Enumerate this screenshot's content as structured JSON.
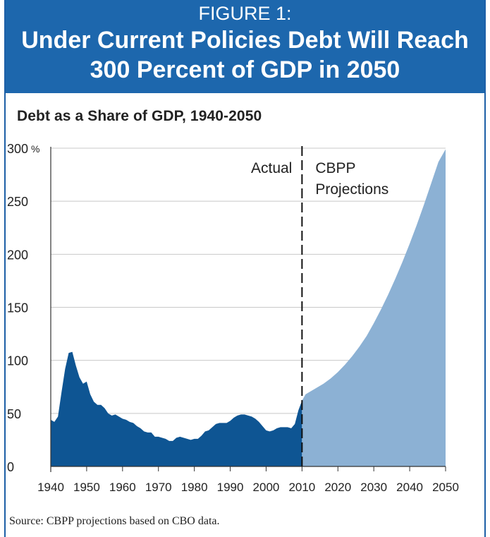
{
  "header": {
    "figure_label": "FIGURE 1:",
    "title": "Under Current Policies Debt Will Reach 300 Percent of GDP in 2050"
  },
  "footer": {
    "source": "Source: CBPP projections based on CBO data."
  },
  "colors": {
    "banner": "#1d67ad",
    "actual_fill": "#0e5593",
    "projection_fill": "#8cb1d4"
  },
  "chart_data": {
    "type": "area",
    "title": "Debt as a Share of GDP, 1940-2050",
    "xlabel": "",
    "ylabel": "",
    "y_unit": "%",
    "xlim": [
      1940,
      2050
    ],
    "ylim": [
      0,
      300
    ],
    "x_ticks": [
      1940,
      1950,
      1960,
      1970,
      1980,
      1990,
      2000,
      2010,
      2020,
      2030,
      2040,
      2050
    ],
    "y_ticks": [
      0,
      50,
      100,
      150,
      200,
      250,
      300
    ],
    "grid": true,
    "divider_year": 2010,
    "annotations": [
      "Actual",
      "CBPP Projections"
    ],
    "series": [
      {
        "name": "Actual",
        "x": [
          1940,
          1941,
          1942,
          1943,
          1944,
          1945,
          1946,
          1947,
          1948,
          1949,
          1950,
          1951,
          1952,
          1953,
          1954,
          1955,
          1956,
          1957,
          1958,
          1959,
          1960,
          1961,
          1962,
          1963,
          1964,
          1965,
          1966,
          1967,
          1968,
          1969,
          1970,
          1971,
          1972,
          1973,
          1974,
          1975,
          1976,
          1977,
          1978,
          1979,
          1980,
          1981,
          1982,
          1983,
          1984,
          1985,
          1986,
          1987,
          1988,
          1989,
          1990,
          1991,
          1992,
          1993,
          1994,
          1995,
          1996,
          1997,
          1998,
          1999,
          2000,
          2001,
          2002,
          2003,
          2004,
          2005,
          2006,
          2007,
          2008,
          2009,
          2010
        ],
        "values": [
          44,
          42,
          47,
          70,
          92,
          107,
          108,
          95,
          84,
          78,
          80,
          68,
          61,
          58,
          58,
          55,
          50,
          48,
          49,
          47,
          45,
          44,
          42,
          41,
          38,
          36,
          33,
          32,
          32,
          28,
          28,
          27,
          26,
          24,
          24,
          27,
          28,
          27,
          26,
          25,
          26,
          26,
          29,
          33,
          34,
          37,
          40,
          41,
          41,
          41,
          43,
          46,
          48,
          49,
          49,
          48,
          47,
          45,
          42,
          38,
          34,
          33,
          34,
          36,
          37,
          37,
          37,
          36,
          40,
          53,
          62
        ]
      },
      {
        "name": "CBPP Projections",
        "x": [
          2010,
          2011,
          2012,
          2014,
          2016,
          2018,
          2020,
          2022,
          2024,
          2026,
          2028,
          2030,
          2032,
          2034,
          2036,
          2038,
          2040,
          2042,
          2044,
          2046,
          2048,
          2050
        ],
        "values": [
          62,
          68,
          70,
          74,
          78,
          83,
          89,
          96,
          104,
          113,
          123,
          135,
          148,
          162,
          177,
          193,
          210,
          228,
          247,
          267,
          287,
          299
        ]
      }
    ]
  }
}
